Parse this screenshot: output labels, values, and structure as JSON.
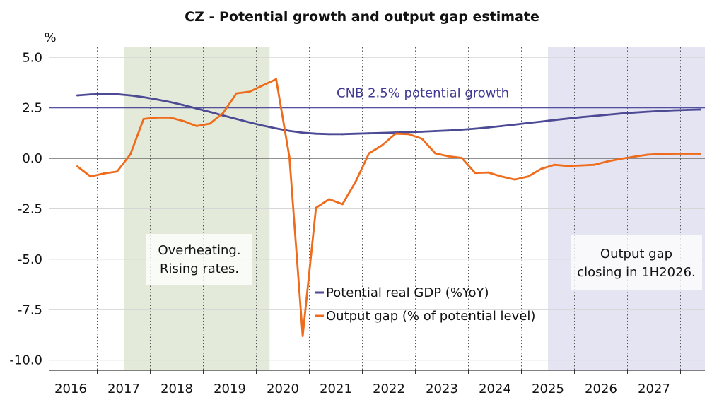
{
  "chart_data": {
    "type": "line",
    "title": "CZ - Potential growth and output gap estimate",
    "unit_label": "%",
    "ylim": [
      -10.5,
      5.5
    ],
    "yticks": [
      5.0,
      2.5,
      0.0,
      -2.5,
      -5.0,
      -7.5,
      -10.0
    ],
    "ytick_labels": [
      "5.0",
      "2.5",
      "0.0",
      "-2.5",
      "-5.0",
      "-7.5",
      "-10.0"
    ],
    "years": [
      "2016",
      "2017",
      "2018",
      "2019",
      "2020",
      "2021",
      "2022",
      "2023",
      "2024",
      "2025",
      "2026",
      "2027"
    ],
    "grid": true,
    "legend_position": "center",
    "reference_line": {
      "y": 2.5,
      "label": "CNB 2.5% potential growth",
      "color": "#3f3a93"
    },
    "zero_line": {
      "y": 0.0,
      "color": "#6e6e6e"
    },
    "shaded_regions": [
      {
        "from": 2017.0,
        "to": 2019.75,
        "color": "#e4ead9",
        "text_lines": [
          "Overheating.",
          "Rising rates."
        ]
      },
      {
        "from": 2025.0,
        "to": 2028.0,
        "color": "#e5e4f2",
        "text_lines": [
          "Output gap",
          "closing in 1H2026."
        ]
      }
    ],
    "series": [
      {
        "name": "Potential real GDP (%YoY)",
        "color": "#4d4a95",
        "x": [
          2016.125,
          2016.375,
          2016.625,
          2016.875,
          2017.125,
          2017.375,
          2017.625,
          2017.875,
          2018.125,
          2018.375,
          2018.625,
          2018.875,
          2019.125,
          2019.375,
          2019.625,
          2019.875,
          2020.125,
          2020.375,
          2020.625,
          2020.875,
          2021.125,
          2021.375,
          2021.625,
          2021.875,
          2022.125,
          2022.375,
          2022.625,
          2022.875,
          2023.125,
          2023.375,
          2023.625,
          2023.875,
          2024.125,
          2024.375,
          2024.625,
          2024.875,
          2025.125,
          2025.375,
          2025.625,
          2025.875,
          2026.125,
          2026.375,
          2026.625,
          2026.875,
          2027.125,
          2027.375,
          2027.625,
          2027.875
        ],
        "values": [
          3.12,
          3.17,
          3.19,
          3.18,
          3.12,
          3.03,
          2.92,
          2.79,
          2.64,
          2.47,
          2.3,
          2.12,
          1.95,
          1.78,
          1.62,
          1.48,
          1.36,
          1.27,
          1.22,
          1.2,
          1.2,
          1.22,
          1.24,
          1.26,
          1.28,
          1.3,
          1.32,
          1.35,
          1.38,
          1.42,
          1.47,
          1.53,
          1.6,
          1.67,
          1.75,
          1.82,
          1.9,
          1.97,
          2.04,
          2.1,
          2.16,
          2.22,
          2.27,
          2.31,
          2.35,
          2.38,
          2.4,
          2.42
        ]
      },
      {
        "name": "Output gap (% of potential level)",
        "color": "#ee6c1c",
        "x": [
          2016.125,
          2016.375,
          2016.625,
          2016.875,
          2017.125,
          2017.375,
          2017.625,
          2017.875,
          2018.125,
          2018.375,
          2018.625,
          2018.875,
          2019.125,
          2019.375,
          2019.625,
          2019.875,
          2020.125,
          2020.375,
          2020.625,
          2020.875,
          2021.125,
          2021.375,
          2021.625,
          2021.875,
          2022.125,
          2022.375,
          2022.625,
          2022.875,
          2023.125,
          2023.375,
          2023.625,
          2023.875,
          2024.125,
          2024.375,
          2024.625,
          2024.875,
          2025.125,
          2025.375,
          2025.625,
          2025.875,
          2026.125,
          2026.375,
          2026.625,
          2026.875,
          2027.125,
          2027.375,
          2027.625,
          2027.875
        ],
        "values": [
          -0.4,
          -0.9,
          -0.75,
          -0.65,
          0.2,
          1.95,
          2.02,
          2.02,
          1.85,
          1.6,
          1.72,
          2.25,
          3.22,
          3.3,
          3.62,
          3.92,
          0.05,
          -8.8,
          -2.45,
          -2.02,
          -2.27,
          -1.15,
          0.25,
          0.65,
          1.22,
          1.2,
          0.97,
          0.25,
          0.1,
          0.02,
          -0.72,
          -0.7,
          -0.9,
          -1.05,
          -0.9,
          -0.52,
          -0.32,
          -0.38,
          -0.35,
          -0.32,
          -0.15,
          -0.02,
          0.08,
          0.18,
          0.22,
          0.23,
          0.23,
          0.23
        ]
      }
    ]
  }
}
